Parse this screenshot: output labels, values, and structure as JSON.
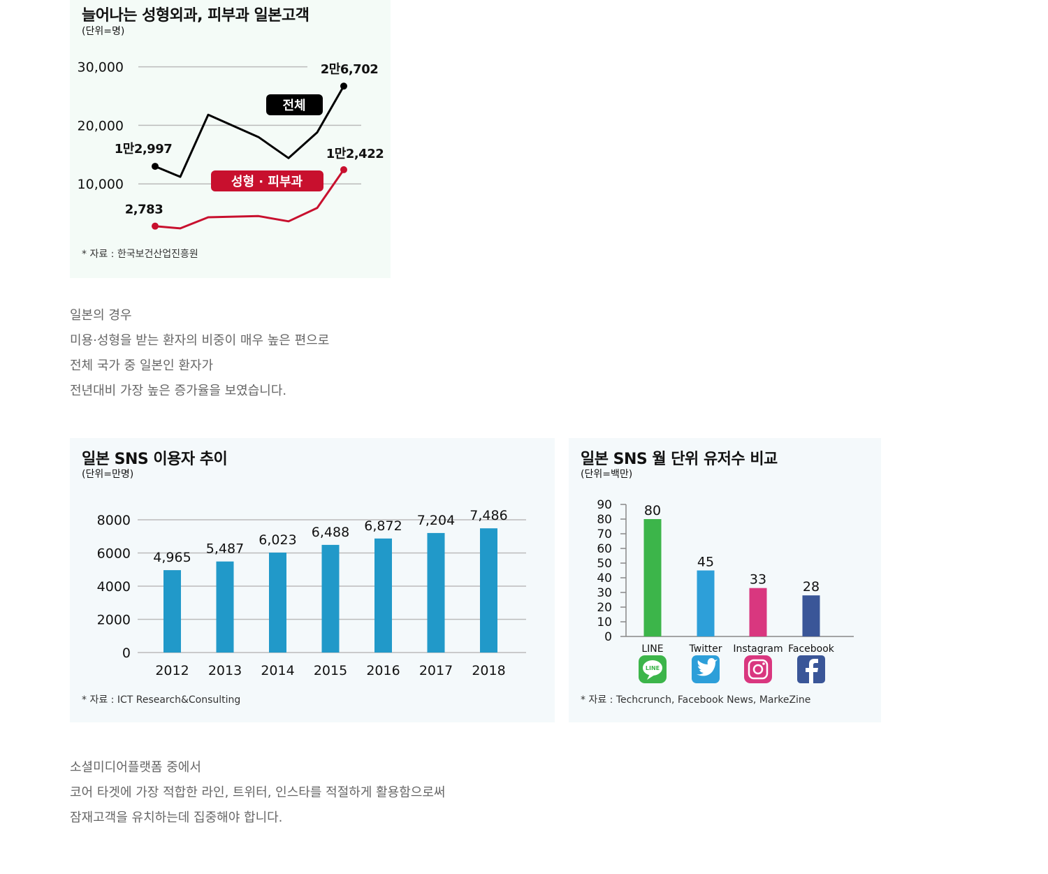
{
  "colors": {
    "total_line": "#000000",
    "cosmetic_line": "#c8102e",
    "sns_bar": "#2199c9",
    "line_bar": "#3cb54a",
    "twitter_bar": "#2d9fd9",
    "instagram_bar": "#d9377f",
    "facebook_bar": "#3a5698",
    "grid": "#bbbbbb"
  },
  "chart1": {
    "title": "늘어나는 성형외과, 피부과 일본고객",
    "unit": "(단위=명)",
    "source": "* 자료 : 한국보건산업진흥원",
    "yticks": [
      "30,000",
      "20,000",
      "10,000"
    ],
    "label_total": "전체",
    "label_cosmetic": "성형 · 피부과",
    "start_total_label": "1만2,997",
    "end_total_label": "2만6,702",
    "start_cosmetic_label": "2,783",
    "end_cosmetic_label": "1만2,422"
  },
  "chart_data": [
    {
      "type": "line",
      "title": "늘어나는 성형외과, 피부과 일본고객",
      "ylabel": "(단위=명)",
      "ylim": [
        0,
        30000
      ],
      "yticks": [
        10000,
        20000,
        30000
      ],
      "grid": true,
      "series": [
        {
          "name": "전체",
          "values": [
            12997,
            11200,
            21800,
            18000,
            14400,
            18800,
            26702
          ]
        },
        {
          "name": "성형 · 피부과",
          "values": [
            2783,
            2400,
            4300,
            4500,
            3600,
            5900,
            12422
          ]
        }
      ]
    },
    {
      "type": "bar",
      "title": "일본 SNS 이용자 추이",
      "ylabel": "(단위=만명)",
      "categories": [
        "2012",
        "2013",
        "2014",
        "2015",
        "2016",
        "2017",
        "2018"
      ],
      "values": [
        4965,
        5487,
        6023,
        6488,
        6872,
        7204,
        7486
      ],
      "value_labels": [
        "4,965",
        "5,487",
        "6,023",
        "6,488",
        "6,872",
        "7,204",
        "7,486"
      ],
      "yticks": [
        0,
        2000,
        4000,
        6000,
        8000
      ],
      "ylim": [
        0,
        8000
      ],
      "grid": true
    },
    {
      "type": "bar",
      "title": "일본 SNS 월 단위 유저수 비교",
      "ylabel": "(단위=백만)",
      "categories": [
        "LINE",
        "Twitter",
        "Instagram",
        "Facebook"
      ],
      "values": [
        80,
        45,
        33,
        28
      ],
      "yticks": [
        0,
        10,
        20,
        30,
        40,
        50,
        60,
        70,
        80,
        90
      ],
      "ylim": [
        0,
        90
      ]
    }
  ],
  "chart2": {
    "title": "일본 SNS 이용자 추이",
    "unit": "(단위=만명)",
    "source": "* 자료 : ICT Research&Consulting"
  },
  "chart3": {
    "title": "일본 SNS 월 단위 유저수 비교",
    "unit": "(단위=백만)",
    "source": "* 자료 : Techcrunch, Facebook News, MarkeZine",
    "icons": [
      "line-app-icon",
      "twitter-bird-icon",
      "instagram-camera-icon",
      "facebook-f-icon"
    ],
    "line_icon_text": "LINE"
  },
  "paragraph1": [
    "일본의 경우",
    "미용·성형을 받는 환자의 비중이 매우 높은 편으로",
    "전체 국가 중 일본인 환자가",
    "전년대비 가장 높은 증가율을 보였습니다."
  ],
  "paragraph2": [
    "소셜미디어플랫폼 중에서",
    "코어 타겟에 가장 적합한 라인, 트위터, 인스타를 적절하게 활용함으로써",
    "잠재고객을 유치하는데 집중해야 합니다."
  ]
}
